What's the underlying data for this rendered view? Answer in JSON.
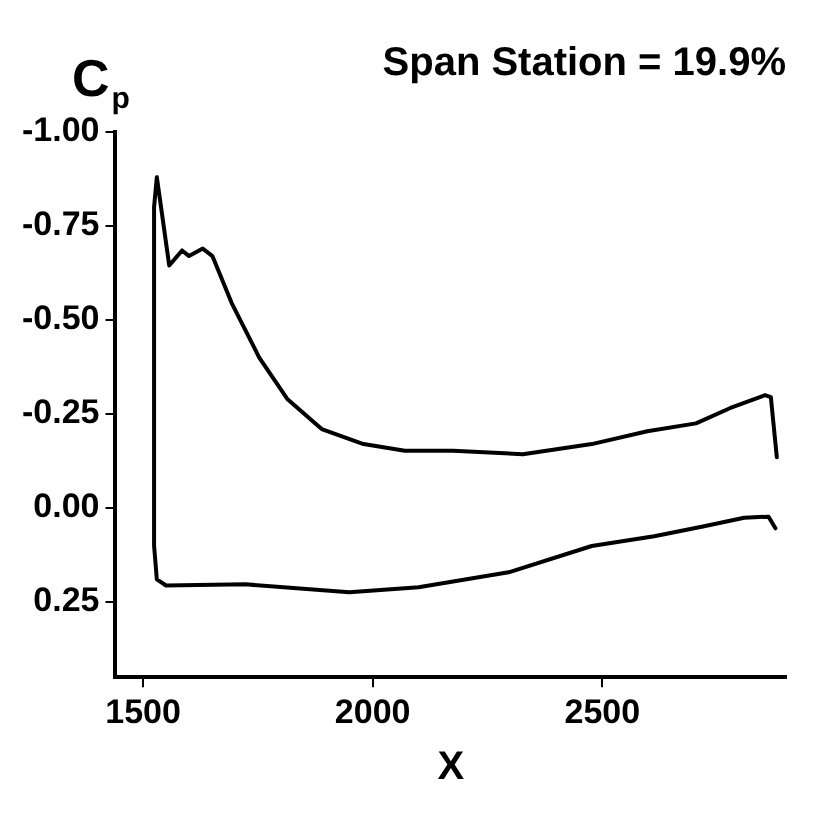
{
  "chart_data": {
    "type": "line",
    "title": "Span Station = 19.9%",
    "xlabel": "X",
    "ylabel": "C$_{p}$",
    "xlim": [
      1440,
      2900
    ],
    "xticks": [
      1500,
      2000,
      2500
    ],
    "ylim": [
      0.45,
      -1.0
    ],
    "yticks": [
      {
        "value": -1,
        "label": "-1.00"
      },
      {
        "value": -0.75,
        "label": "-0.75"
      },
      {
        "value": -0.5,
        "label": "-0.50"
      },
      {
        "value": -0.25,
        "label": "-0.25"
      },
      {
        "value": 0,
        "label": "0.00"
      },
      {
        "value": 0.25,
        "label": "0.25"
      }
    ],
    "grid": false,
    "legend": false,
    "marker": "none",
    "line_style": "solid",
    "series": [
      {
        "color": "#000000",
        "x": [
          2880,
          2867,
          2854,
          2779,
          2704,
          2598,
          2477,
          2327,
          2175,
          2070,
          1980,
          1889,
          1814,
          1753,
          1693,
          1651,
          1630,
          1600,
          1585,
          1557,
          1530,
          1524,
          1524,
          1530,
          1550,
          1723,
          1949,
          2100,
          2296,
          2477,
          2613,
          2719,
          2809,
          2862,
          2877
        ],
        "values": [
          -0.135,
          -0.295,
          -0.3,
          -0.266,
          -0.225,
          -0.204,
          -0.17,
          -0.143,
          -0.152,
          -0.152,
          -0.17,
          -0.21,
          -0.29,
          -0.4,
          -0.545,
          -0.67,
          -0.69,
          -0.67,
          -0.685,
          -0.645,
          -0.88,
          -0.8,
          0.1,
          0.19,
          0.206,
          0.203,
          0.224,
          0.211,
          0.171,
          0.101,
          0.075,
          0.049,
          0.026,
          0.023,
          0.054
        ]
      }
    ]
  }
}
